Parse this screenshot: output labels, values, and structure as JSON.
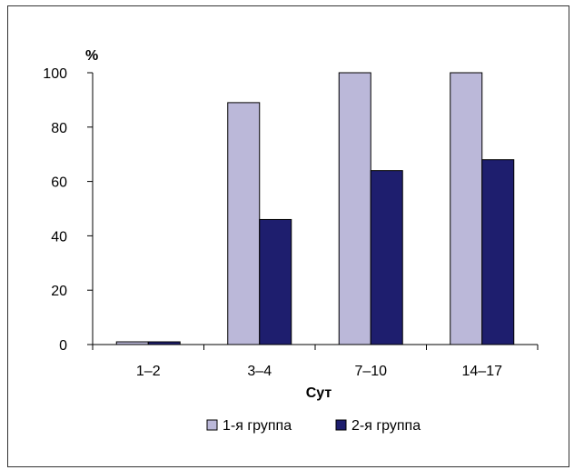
{
  "chart_data": {
    "type": "bar",
    "ylabel": "%",
    "xlabel": "Сут",
    "categories": [
      "1–2",
      "3–4",
      "7–10",
      "14–17"
    ],
    "ylim": [
      0,
      100
    ],
    "yticks": [
      0,
      20,
      40,
      60,
      80,
      100
    ],
    "grid": false,
    "legend_position": "bottom",
    "series": [
      {
        "name": "1-я группа",
        "color": "#BBB8D9",
        "values": [
          1,
          89,
          100,
          100
        ]
      },
      {
        "name": "2-я группа",
        "color": "#1E1E6E",
        "values": [
          1,
          46,
          64,
          68
        ]
      }
    ]
  }
}
